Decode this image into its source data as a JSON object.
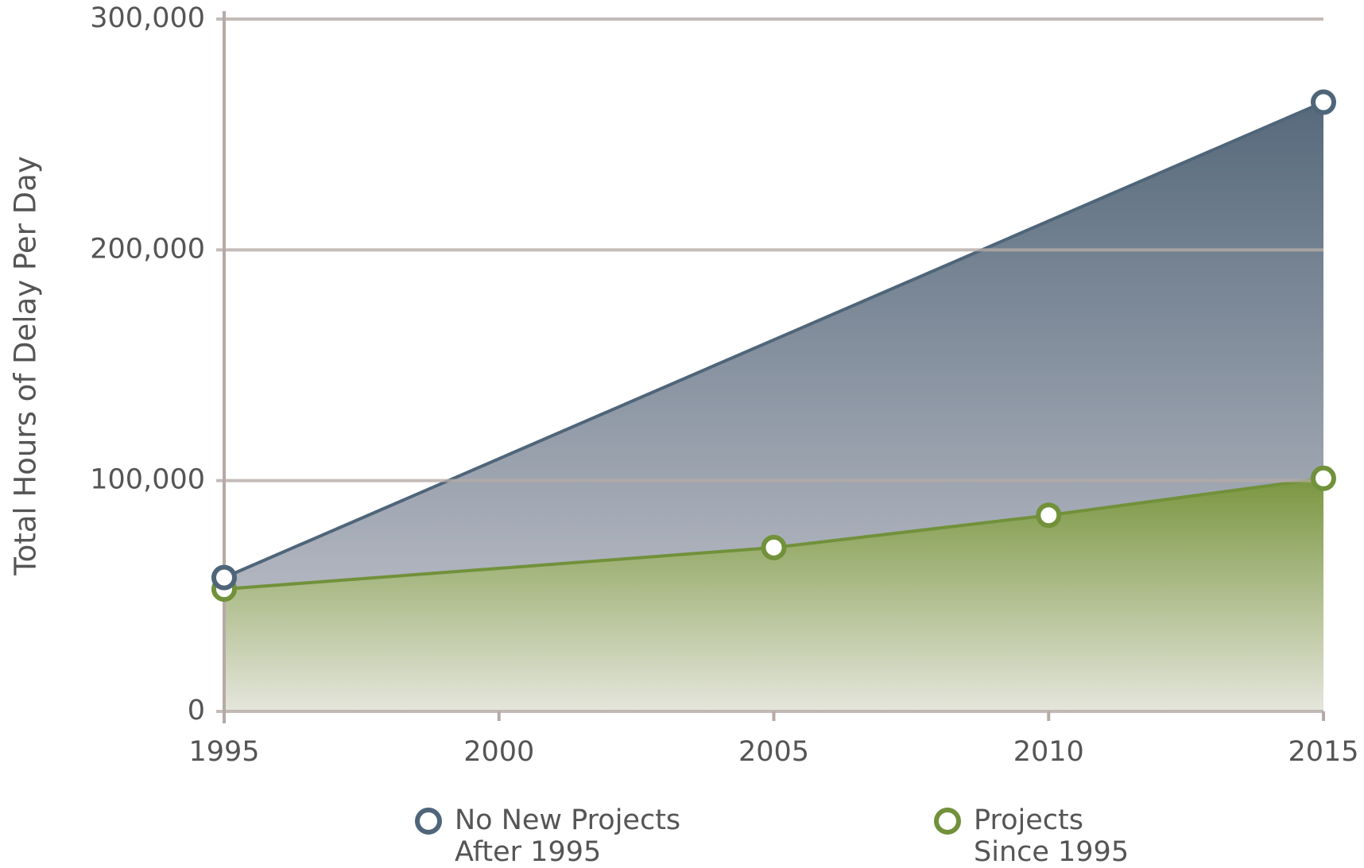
{
  "chart_data": {
    "type": "area",
    "ylabel": "Total Hours of Delay Per Day",
    "xlim": [
      1995,
      2015
    ],
    "xticks": [
      1995,
      2000,
      2005,
      2010,
      2015
    ],
    "ylim": [
      0,
      300000
    ],
    "yticks": [
      0,
      {
        "value": 100000,
        "label": "100,000"
      },
      {
        "value": 200000,
        "label": "200,000"
      },
      {
        "value": 300000,
        "label": "300,000"
      }
    ],
    "grid": true,
    "series": [
      {
        "name": "No New Projects After 1995",
        "color": "#4f6579",
        "gradient": [
          "#56697b",
          "#c9c9d1"
        ],
        "x": [
          1995,
          2015
        ],
        "values": [
          58000,
          264000
        ]
      },
      {
        "name": "Projects Since 1995",
        "color": "#71913a",
        "gradient": [
          "#7a9640",
          "#e5e6dc"
        ],
        "x": [
          1995,
          2005,
          2010,
          2015
        ],
        "values": [
          53000,
          71000,
          85000,
          101000
        ]
      }
    ]
  }
}
